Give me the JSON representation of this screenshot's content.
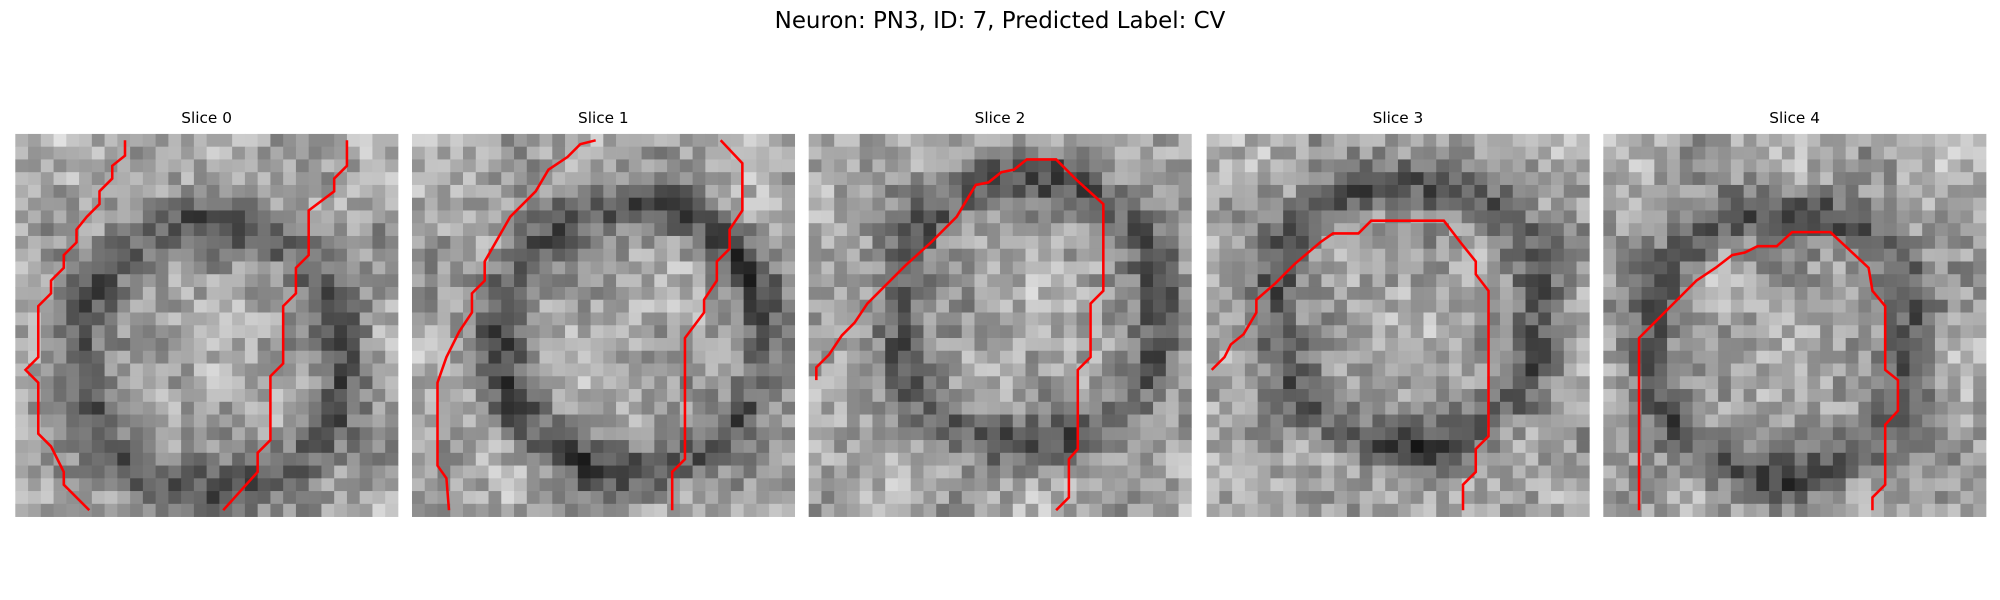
{
  "title": "Neuron: PN3, ID: 7, Predicted Label: CV",
  "panels": [
    {
      "title": "Slice 0"
    },
    {
      "title": "Slice 1"
    },
    {
      "title": "Slice 2"
    },
    {
      "title": "Slice 3"
    },
    {
      "title": "Slice 4"
    }
  ]
}
